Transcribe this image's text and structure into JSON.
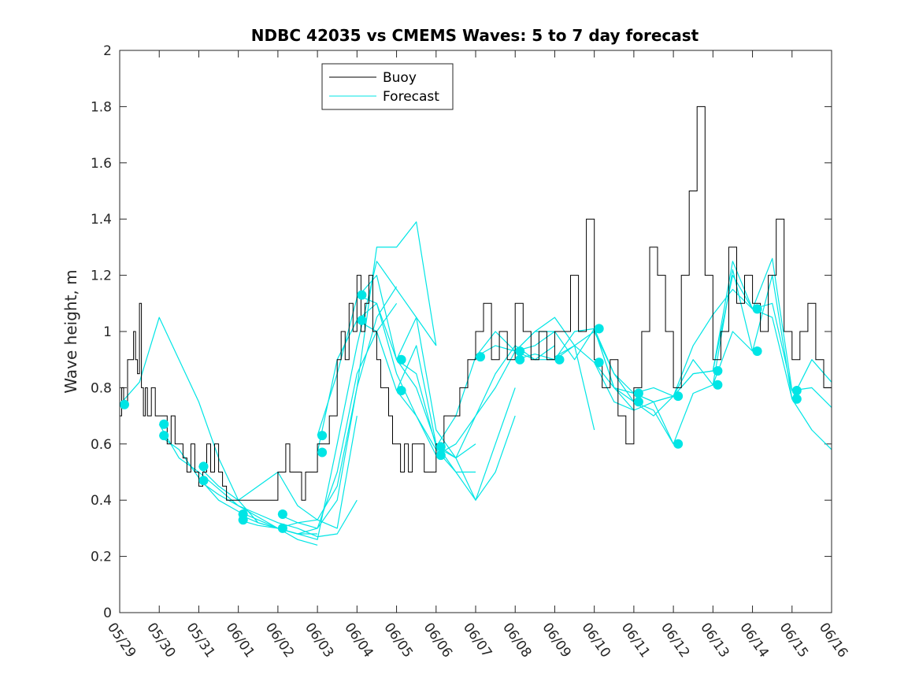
{
  "chart_data": {
    "type": "line",
    "title": "NDBC 42035 vs CMEMS Waves: 5 to 7 day forecast",
    "ylabel": "Wave height, m",
    "xlabel": "",
    "xlim": [
      0,
      18
    ],
    "ylim": [
      0,
      2
    ],
    "yticks": [
      0,
      0.2,
      0.4,
      0.6,
      0.8,
      1,
      1.2,
      1.4,
      1.6,
      1.8,
      2
    ],
    "ytick_labels": [
      "0",
      "0.2",
      "0.4",
      "0.6",
      "0.8",
      "1",
      "1.2",
      "1.4",
      "1.6",
      "1.8",
      "2"
    ],
    "xtick_labels": [
      "05/29",
      "05/30",
      "05/31",
      "06/01",
      "06/02",
      "06/03",
      "06/04",
      "06/05",
      "06/06",
      "06/07",
      "06/08",
      "06/09",
      "06/10",
      "06/11",
      "06/12",
      "06/13",
      "06/14",
      "06/15",
      "06/16"
    ],
    "grid": false,
    "legend": {
      "position": "top-left",
      "entries": [
        {
          "label": "Buoy",
          "color": "#000000"
        },
        {
          "label": "Forecast",
          "color": "#00e5e5"
        }
      ]
    },
    "colors": {
      "buoy": "#000000",
      "forecast": "#00e5e5",
      "markers": "#00e5e5"
    },
    "buoy": {
      "x": [
        0,
        0.05,
        0.1,
        0.2,
        0.3,
        0.35,
        0.4,
        0.45,
        0.5,
        0.55,
        0.6,
        0.65,
        0.7,
        0.8,
        0.9,
        1.0,
        1.1,
        1.2,
        1.3,
        1.4,
        1.5,
        1.6,
        1.7,
        1.8,
        1.9,
        2.0,
        2.1,
        2.2,
        2.3,
        2.4,
        2.5,
        2.6,
        2.7,
        2.8,
        2.9,
        3.0,
        3.2,
        3.4,
        3.6,
        3.8,
        4.0,
        4.1,
        4.2,
        4.3,
        4.4,
        4.5,
        4.6,
        4.7,
        4.8,
        4.9,
        5.0,
        5.1,
        5.2,
        5.3,
        5.4,
        5.5,
        5.6,
        5.7,
        5.8,
        5.9,
        6.0,
        6.1,
        6.2,
        6.3,
        6.4,
        6.5,
        6.6,
        6.7,
        6.8,
        6.9,
        7.0,
        7.1,
        7.2,
        7.3,
        7.4,
        7.5,
        7.6,
        7.7,
        7.8,
        7.9,
        8.0,
        8.2,
        8.4,
        8.6,
        8.8,
        9.0,
        9.2,
        9.4,
        9.6,
        9.8,
        10.0,
        10.2,
        10.4,
        10.6,
        10.8,
        11.0,
        11.2,
        11.4,
        11.6,
        11.8,
        12.0,
        12.2,
        12.4,
        12.6,
        12.8,
        13.0,
        13.2,
        13.4,
        13.6,
        13.8,
        14.0,
        14.2,
        14.4,
        14.6,
        14.8,
        15.0,
        15.2,
        15.4,
        15.6,
        15.8,
        16.0,
        16.2,
        16.4,
        16.6,
        16.8,
        17.0,
        17.2,
        17.4,
        17.6,
        17.8,
        18.0
      ],
      "y": [
        0.7,
        0.8,
        0.75,
        0.9,
        0.9,
        1.0,
        0.9,
        0.85,
        1.1,
        0.8,
        0.7,
        0.8,
        0.7,
        0.8,
        0.7,
        0.7,
        0.7,
        0.6,
        0.7,
        0.6,
        0.6,
        0.55,
        0.5,
        0.6,
        0.5,
        0.45,
        0.5,
        0.6,
        0.5,
        0.6,
        0.5,
        0.45,
        0.4,
        0.4,
        0.4,
        0.4,
        0.4,
        0.4,
        0.4,
        0.4,
        0.5,
        0.5,
        0.6,
        0.5,
        0.5,
        0.5,
        0.4,
        0.5,
        0.5,
        0.5,
        0.6,
        0.6,
        0.6,
        0.7,
        0.7,
        0.9,
        1.0,
        0.9,
        1.1,
        1.0,
        1.2,
        1.0,
        1.1,
        1.2,
        1.0,
        0.9,
        0.8,
        0.8,
        0.7,
        0.6,
        0.6,
        0.5,
        0.6,
        0.5,
        0.6,
        0.6,
        0.6,
        0.5,
        0.5,
        0.5,
        0.6,
        0.7,
        0.7,
        0.8,
        0.9,
        1.0,
        1.1,
        0.9,
        1.0,
        0.9,
        1.1,
        1.0,
        0.9,
        1.0,
        0.9,
        1.0,
        1.0,
        1.2,
        1.0,
        1.4,
        0.9,
        0.8,
        0.9,
        0.7,
        0.6,
        0.8,
        1.0,
        1.3,
        1.2,
        1.0,
        0.8,
        1.2,
        1.5,
        1.8,
        1.2,
        0.9,
        1.0,
        1.3,
        1.1,
        1.2,
        1.1,
        1.0,
        1.2,
        1.4,
        1.0,
        0.9,
        1.0,
        1.1,
        0.9,
        0.8,
        0.8
      ]
    },
    "forecast": [
      {
        "x": [
          0.0,
          0.5,
          1.0,
          1.5,
          2.0,
          2.5,
          3.0,
          3.5,
          4.0
        ],
        "y": [
          0.74,
          0.82,
          1.05,
          0.9,
          0.75,
          0.55,
          0.4,
          0.32,
          0.3
        ]
      },
      {
        "x": [
          1.0,
          1.5,
          2.0,
          2.5,
          3.0,
          3.5,
          4.0,
          4.5,
          5.0
        ],
        "y": [
          0.67,
          0.55,
          0.5,
          0.44,
          0.38,
          0.34,
          0.3,
          0.26,
          0.24
        ]
      },
      {
        "x": [
          1.0,
          1.5,
          2.0,
          2.5,
          3.0,
          3.5,
          4.0,
          4.5,
          5.0
        ],
        "y": [
          0.63,
          0.58,
          0.48,
          0.4,
          0.36,
          0.33,
          0.3,
          0.28,
          0.28
        ]
      },
      {
        "x": [
          2.0,
          2.5,
          3.0,
          3.5,
          4.0,
          4.5,
          5.0,
          5.5,
          6.0
        ],
        "y": [
          0.52,
          0.45,
          0.4,
          0.45,
          0.5,
          0.38,
          0.33,
          0.3,
          0.7
        ]
      },
      {
        "x": [
          2.0,
          2.5,
          3.0,
          3.5,
          4.0,
          4.5,
          5.0,
          5.5,
          6.0
        ],
        "y": [
          0.47,
          0.42,
          0.38,
          0.35,
          0.32,
          0.3,
          0.27,
          0.28,
          0.4
        ]
      },
      {
        "x": [
          3.0,
          3.5,
          4.0,
          4.5,
          5.0,
          5.5,
          6.0,
          6.5,
          7.0
        ],
        "y": [
          0.35,
          0.32,
          0.3,
          0.32,
          0.33,
          0.45,
          0.8,
          1.05,
          1.16
        ]
      },
      {
        "x": [
          3.0,
          3.5,
          4.0,
          4.5,
          5.0,
          5.5,
          6.0,
          6.5,
          7.0
        ],
        "y": [
          0.33,
          0.31,
          0.3,
          0.28,
          0.3,
          0.5,
          0.85,
          1.0,
          1.1
        ]
      },
      {
        "x": [
          4.0,
          4.5,
          5.0,
          5.5,
          6.0,
          6.5,
          7.0,
          7.5,
          8.0
        ],
        "y": [
          0.35,
          0.32,
          0.3,
          0.4,
          0.8,
          1.3,
          1.3,
          1.39,
          0.95
        ]
      },
      {
        "x": [
          4.0,
          4.5,
          5.0,
          5.5,
          6.0,
          6.5,
          7.0,
          7.5,
          8.0
        ],
        "y": [
          0.3,
          0.28,
          0.26,
          0.6,
          0.95,
          1.25,
          1.15,
          1.05,
          0.95
        ]
      },
      {
        "x": [
          5.0,
          5.5,
          6.0,
          6.5,
          7.0,
          7.5,
          8.0,
          8.5,
          9.0
        ],
        "y": [
          0.63,
          0.85,
          1.12,
          1.2,
          0.9,
          0.8,
          0.6,
          0.55,
          0.6
        ]
      },
      {
        "x": [
          5.0,
          5.5,
          6.0,
          6.5,
          7.0,
          7.5,
          8.0,
          8.5,
          9.0
        ],
        "y": [
          0.57,
          0.9,
          1.04,
          1.1,
          0.85,
          0.7,
          0.58,
          0.5,
          0.5
        ]
      },
      {
        "x": [
          6.0,
          6.5,
          7.0,
          7.5,
          8.0,
          8.5,
          9.0,
          9.5,
          10.0
        ],
        "y": [
          1.13,
          1.1,
          0.9,
          1.05,
          0.65,
          0.55,
          0.4,
          0.5,
          0.7
        ]
      },
      {
        "x": [
          6.0,
          6.5,
          7.0,
          7.5,
          8.0,
          8.5,
          9.0,
          9.5,
          10.0
        ],
        "y": [
          1.04,
          1.0,
          0.79,
          0.95,
          0.6,
          0.5,
          0.4,
          0.6,
          0.8
        ]
      },
      {
        "x": [
          7.0,
          7.5,
          8.0,
          8.5,
          9.0,
          9.5,
          10.0,
          10.5,
          11.0
        ],
        "y": [
          0.9,
          0.85,
          0.59,
          0.55,
          0.7,
          0.85,
          0.95,
          0.9,
          0.95
        ]
      },
      {
        "x": [
          7.0,
          7.5,
          8.0,
          8.5,
          9.0,
          9.5,
          10.0,
          10.5,
          11.0
        ],
        "y": [
          0.79,
          0.7,
          0.56,
          0.6,
          0.7,
          0.8,
          0.93,
          1.0,
          1.0
        ]
      },
      {
        "x": [
          8.0,
          8.5,
          9.0,
          9.5,
          10.0,
          10.5,
          11.0,
          11.5,
          12.0
        ],
        "y": [
          0.59,
          0.7,
          0.91,
          1.0,
          0.93,
          1.0,
          1.05,
          0.95,
          0.65
        ]
      },
      {
        "x": [
          9.0,
          9.5,
          10.0,
          10.5,
          11.0,
          11.5,
          12.0,
          12.5,
          13.0
        ],
        "y": [
          0.91,
          0.95,
          0.93,
          0.95,
          1.0,
          0.9,
          1.01,
          0.8,
          0.72
        ]
      },
      {
        "x": [
          10.0,
          10.5,
          11.0,
          11.5,
          12.0,
          12.5,
          13.0,
          13.5,
          14.0
        ],
        "y": [
          0.93,
          0.9,
          0.9,
          1.0,
          1.01,
          0.85,
          0.78,
          0.8,
          0.77
        ]
      },
      {
        "x": [
          10.0,
          10.5,
          11.0,
          11.5,
          12.0,
          12.5,
          13.0,
          13.5,
          14.0
        ],
        "y": [
          0.9,
          0.92,
          0.9,
          0.95,
          0.89,
          0.75,
          0.72,
          0.75,
          0.6
        ]
      },
      {
        "x": [
          11.0,
          11.5,
          12.0,
          12.5,
          13.0,
          13.5,
          14.0,
          14.5,
          15.0
        ],
        "y": [
          0.91,
          0.95,
          1.0,
          0.85,
          0.75,
          0.7,
          0.77,
          0.85,
          0.86
        ]
      },
      {
        "x": [
          12.0,
          12.5,
          13.0,
          13.5,
          14.0,
          14.5,
          15.0,
          15.5,
          16.0
        ],
        "y": [
          1.01,
          0.8,
          0.78,
          0.75,
          0.77,
          0.95,
          1.06,
          1.15,
          1.08
        ]
      },
      {
        "x": [
          12.0,
          12.5,
          13.0,
          13.5,
          14.0,
          14.5,
          15.0,
          15.5,
          16.0
        ],
        "y": [
          0.89,
          0.8,
          0.75,
          0.72,
          0.6,
          0.78,
          0.81,
          1.0,
          0.93
        ]
      },
      {
        "x": [
          13.0,
          13.5,
          14.0,
          14.5,
          15.0,
          15.5,
          16.0,
          16.5,
          17.0
        ],
        "y": [
          0.78,
          0.75,
          0.77,
          0.85,
          0.86,
          1.25,
          1.08,
          1.26,
          0.79
        ]
      },
      {
        "x": [
          14.0,
          14.5,
          15.0,
          15.5,
          16.0,
          16.5,
          17.0,
          17.5,
          18.0
        ],
        "y": [
          0.77,
          0.9,
          0.81,
          1.22,
          0.93,
          1.2,
          0.76,
          0.9,
          0.82
        ]
      },
      {
        "x": [
          15.0,
          15.5,
          16.0,
          16.5,
          17.0,
          17.5,
          18.0
        ],
        "y": [
          0.86,
          1.2,
          1.08,
          1.1,
          0.79,
          0.8,
          0.73
        ]
      },
      {
        "x": [
          16.0,
          16.5,
          17.0,
          17.5,
          18.0
        ],
        "y": [
          1.08,
          1.05,
          0.76,
          0.65,
          0.58
        ]
      }
    ],
    "markers": {
      "x": [
        0.12,
        1.12,
        1.12,
        2.12,
        2.12,
        3.12,
        3.12,
        4.12,
        4.12,
        5.12,
        5.12,
        6.12,
        6.12,
        7.12,
        7.12,
        8.12,
        8.12,
        9.12,
        10.12,
        10.12,
        11.12,
        12.12,
        12.12,
        13.12,
        13.12,
        14.12,
        14.12,
        15.12,
        15.12,
        16.12,
        16.12,
        17.12,
        17.12
      ],
      "y": [
        0.74,
        0.67,
        0.63,
        0.52,
        0.47,
        0.35,
        0.33,
        0.35,
        0.3,
        0.63,
        0.57,
        1.13,
        1.04,
        0.9,
        0.79,
        0.59,
        0.56,
        0.91,
        0.93,
        0.9,
        0.9,
        1.01,
        0.89,
        0.78,
        0.75,
        0.77,
        0.6,
        0.86,
        0.81,
        1.08,
        0.93,
        0.79,
        0.76
      ]
    }
  }
}
